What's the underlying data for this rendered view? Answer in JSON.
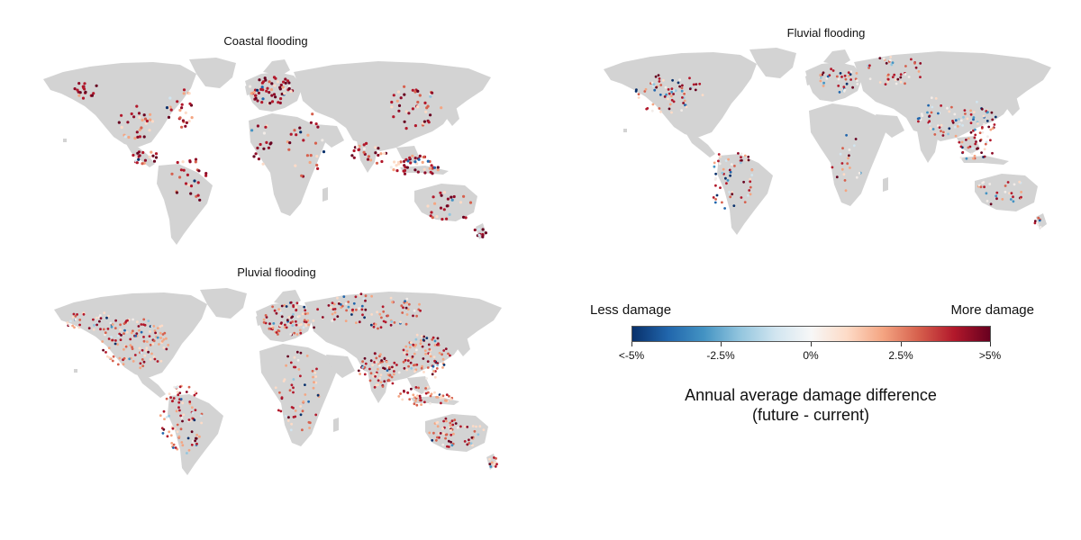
{
  "panels": [
    {
      "id": "coastal",
      "title": "Coastal flooding"
    },
    {
      "id": "fluvial",
      "title": "Fluvial flooding"
    },
    {
      "id": "pluvial",
      "title": "Pluvial flooding"
    }
  ],
  "legend": {
    "left_label": "Less damage",
    "right_label": "More damage",
    "ticks": [
      "<-5%",
      "-2.5%",
      "0%",
      "2.5%",
      ">5%"
    ],
    "title_line1": "Annual average damage difference",
    "title_line2": "(future - current)",
    "colors": [
      "#08306b",
      "#2166ac",
      "#4393c3",
      "#92c5de",
      "#d1e5f0",
      "#f7f7f7",
      "#fddbc7",
      "#f4a582",
      "#d6604d",
      "#b2182b",
      "#67001f"
    ]
  },
  "land_color": "#d3d3d3"
}
